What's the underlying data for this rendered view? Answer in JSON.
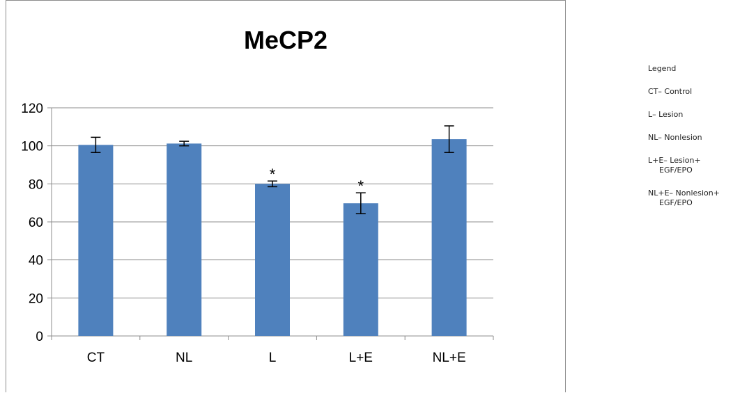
{
  "chart_data": {
    "type": "bar",
    "title": "MeCP2",
    "xlabel": "",
    "ylabel": "",
    "categories": [
      "CT",
      "NL",
      "L",
      "L+E",
      "NL+E"
    ],
    "series": [
      {
        "values": [
          100.5,
          101.2,
          80.0,
          69.8,
          103.5
        ],
        "errors": [
          4.0,
          1.2,
          1.5,
          5.5,
          7.0
        ],
        "color": "#4f81bd"
      }
    ],
    "annotations": [
      {
        "category": "L",
        "text": "*"
      },
      {
        "category": "L+E",
        "text": "*"
      }
    ],
    "ylim": [
      0,
      120
    ],
    "yticks": [
      0,
      20,
      40,
      60,
      80,
      100,
      120
    ],
    "grid": true,
    "legend": "none"
  },
  "notes": {
    "items": [
      "Legend",
      "CT– Control",
      "L– Lesion",
      "NL– Nonlesion",
      "L+E– Lesion+ EGF/EPO",
      "NL+E– Nonlesion+ EGF/EPO"
    ]
  }
}
